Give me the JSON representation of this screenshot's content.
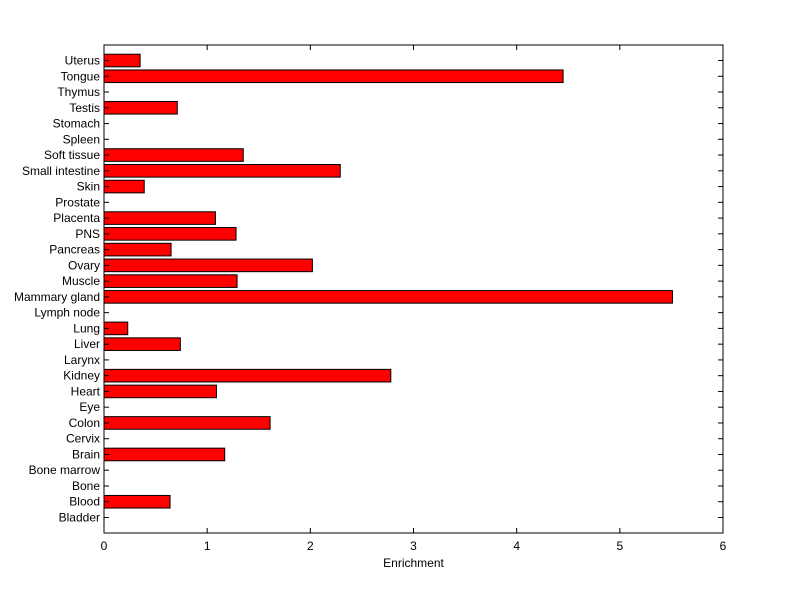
{
  "chart_data": {
    "type": "bar",
    "orientation": "horizontal",
    "categories": [
      "Uterus",
      "Tongue",
      "Thymus",
      "Testis",
      "Stomach",
      "Spleen",
      "Soft tissue",
      "Small intestine",
      "Skin",
      "Prostate",
      "Placenta",
      "PNS",
      "Pancreas",
      "Ovary",
      "Muscle",
      "Mammary gland",
      "Lymph node",
      "Lung",
      "Liver",
      "Larynx",
      "Kidney",
      "Heart",
      "Eye",
      "Colon",
      "Cervix",
      "Brain",
      "Bone marrow",
      "Bone",
      "Blood",
      "Bladder"
    ],
    "values": [
      0.35,
      4.45,
      0,
      0.71,
      0,
      0,
      1.35,
      2.29,
      0.39,
      0,
      1.08,
      1.28,
      0.65,
      2.02,
      1.29,
      5.51,
      0,
      0.23,
      0.74,
      0,
      2.78,
      1.09,
      0,
      1.61,
      0,
      1.17,
      0,
      0,
      0.64,
      0
    ],
    "xlabel": "Enrichment",
    "ylabel": "",
    "title": "",
    "xlim": [
      0,
      6
    ],
    "xticks": [
      0,
      1,
      2,
      3,
      4,
      5,
      6
    ],
    "grid": false,
    "bar_color": "#ff0000",
    "bar_edge_color": "#000000"
  }
}
